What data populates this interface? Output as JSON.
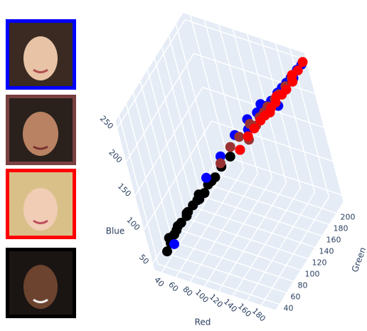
{
  "chart_data": {
    "type": "scatter3d",
    "xlabel": "Red",
    "ylabel": "Green",
    "zlabel": "Blue",
    "xlim": [
      30,
      200
    ],
    "ylim": [
      30,
      220
    ],
    "zlim": [
      40,
      260
    ],
    "xticks": [
      40,
      60,
      80,
      100,
      120,
      140,
      160,
      180
    ],
    "yticks": [
      40,
      60,
      80,
      100,
      120,
      140,
      160,
      180,
      200
    ],
    "zticks": [
      50,
      100,
      150,
      200,
      250
    ],
    "grid": true,
    "series": [
      {
        "color": "#000000",
        "x": [
          45,
          50,
          55,
          60,
          48,
          65,
          70,
          75,
          80,
          58,
          85,
          90,
          95,
          100,
          72,
          110,
          120,
          130,
          105,
          88
        ],
        "y": [
          45,
          50,
          55,
          60,
          52,
          62,
          70,
          65,
          75,
          58,
          80,
          78,
          85,
          90,
          72,
          95,
          100,
          110,
          92,
          82
        ],
        "z": [
          60,
          70,
          80,
          90,
          75,
          95,
          100,
          110,
          115,
          85,
          120,
          125,
          130,
          140,
          105,
          150,
          165,
          175,
          145,
          128
        ]
      },
      {
        "color": "#0000ff",
        "x": [
          55,
          100,
          115,
          130,
          140,
          150,
          160,
          165,
          170,
          175,
          180,
          185,
          190,
          145,
          155,
          170,
          185,
          195
        ],
        "y": [
          50,
          90,
          110,
          130,
          150,
          160,
          170,
          175,
          185,
          190,
          195,
          200,
          210,
          140,
          165,
          180,
          205,
          215
        ],
        "z": [
          70,
          150,
          170,
          190,
          200,
          205,
          210,
          215,
          220,
          225,
          230,
          235,
          240,
          195,
          215,
          205,
          230,
          245
        ]
      },
      {
        "color": "#993333",
        "x": [
          120,
          130,
          140,
          150,
          160,
          165,
          170,
          175,
          180,
          140,
          155,
          185,
          190,
          150,
          165
        ],
        "y": [
          100,
          115,
          125,
          140,
          150,
          155,
          160,
          170,
          175,
          120,
          145,
          185,
          195,
          130,
          165
        ],
        "z": [
          170,
          185,
          195,
          205,
          210,
          215,
          220,
          225,
          230,
          180,
          200,
          235,
          240,
          190,
          215
        ]
      },
      {
        "color": "#ff0000",
        "x": [
          140,
          155,
          165,
          170,
          175,
          180,
          185,
          190,
          195,
          160,
          175,
          188,
          198,
          150,
          170
        ],
        "y": [
          120,
          140,
          155,
          165,
          170,
          180,
          185,
          195,
          205,
          150,
          175,
          200,
          215,
          130,
          160
        ],
        "z": [
          180,
          200,
          210,
          215,
          220,
          225,
          230,
          235,
          245,
          205,
          225,
          240,
          250,
          195,
          212
        ]
      }
    ]
  }
}
